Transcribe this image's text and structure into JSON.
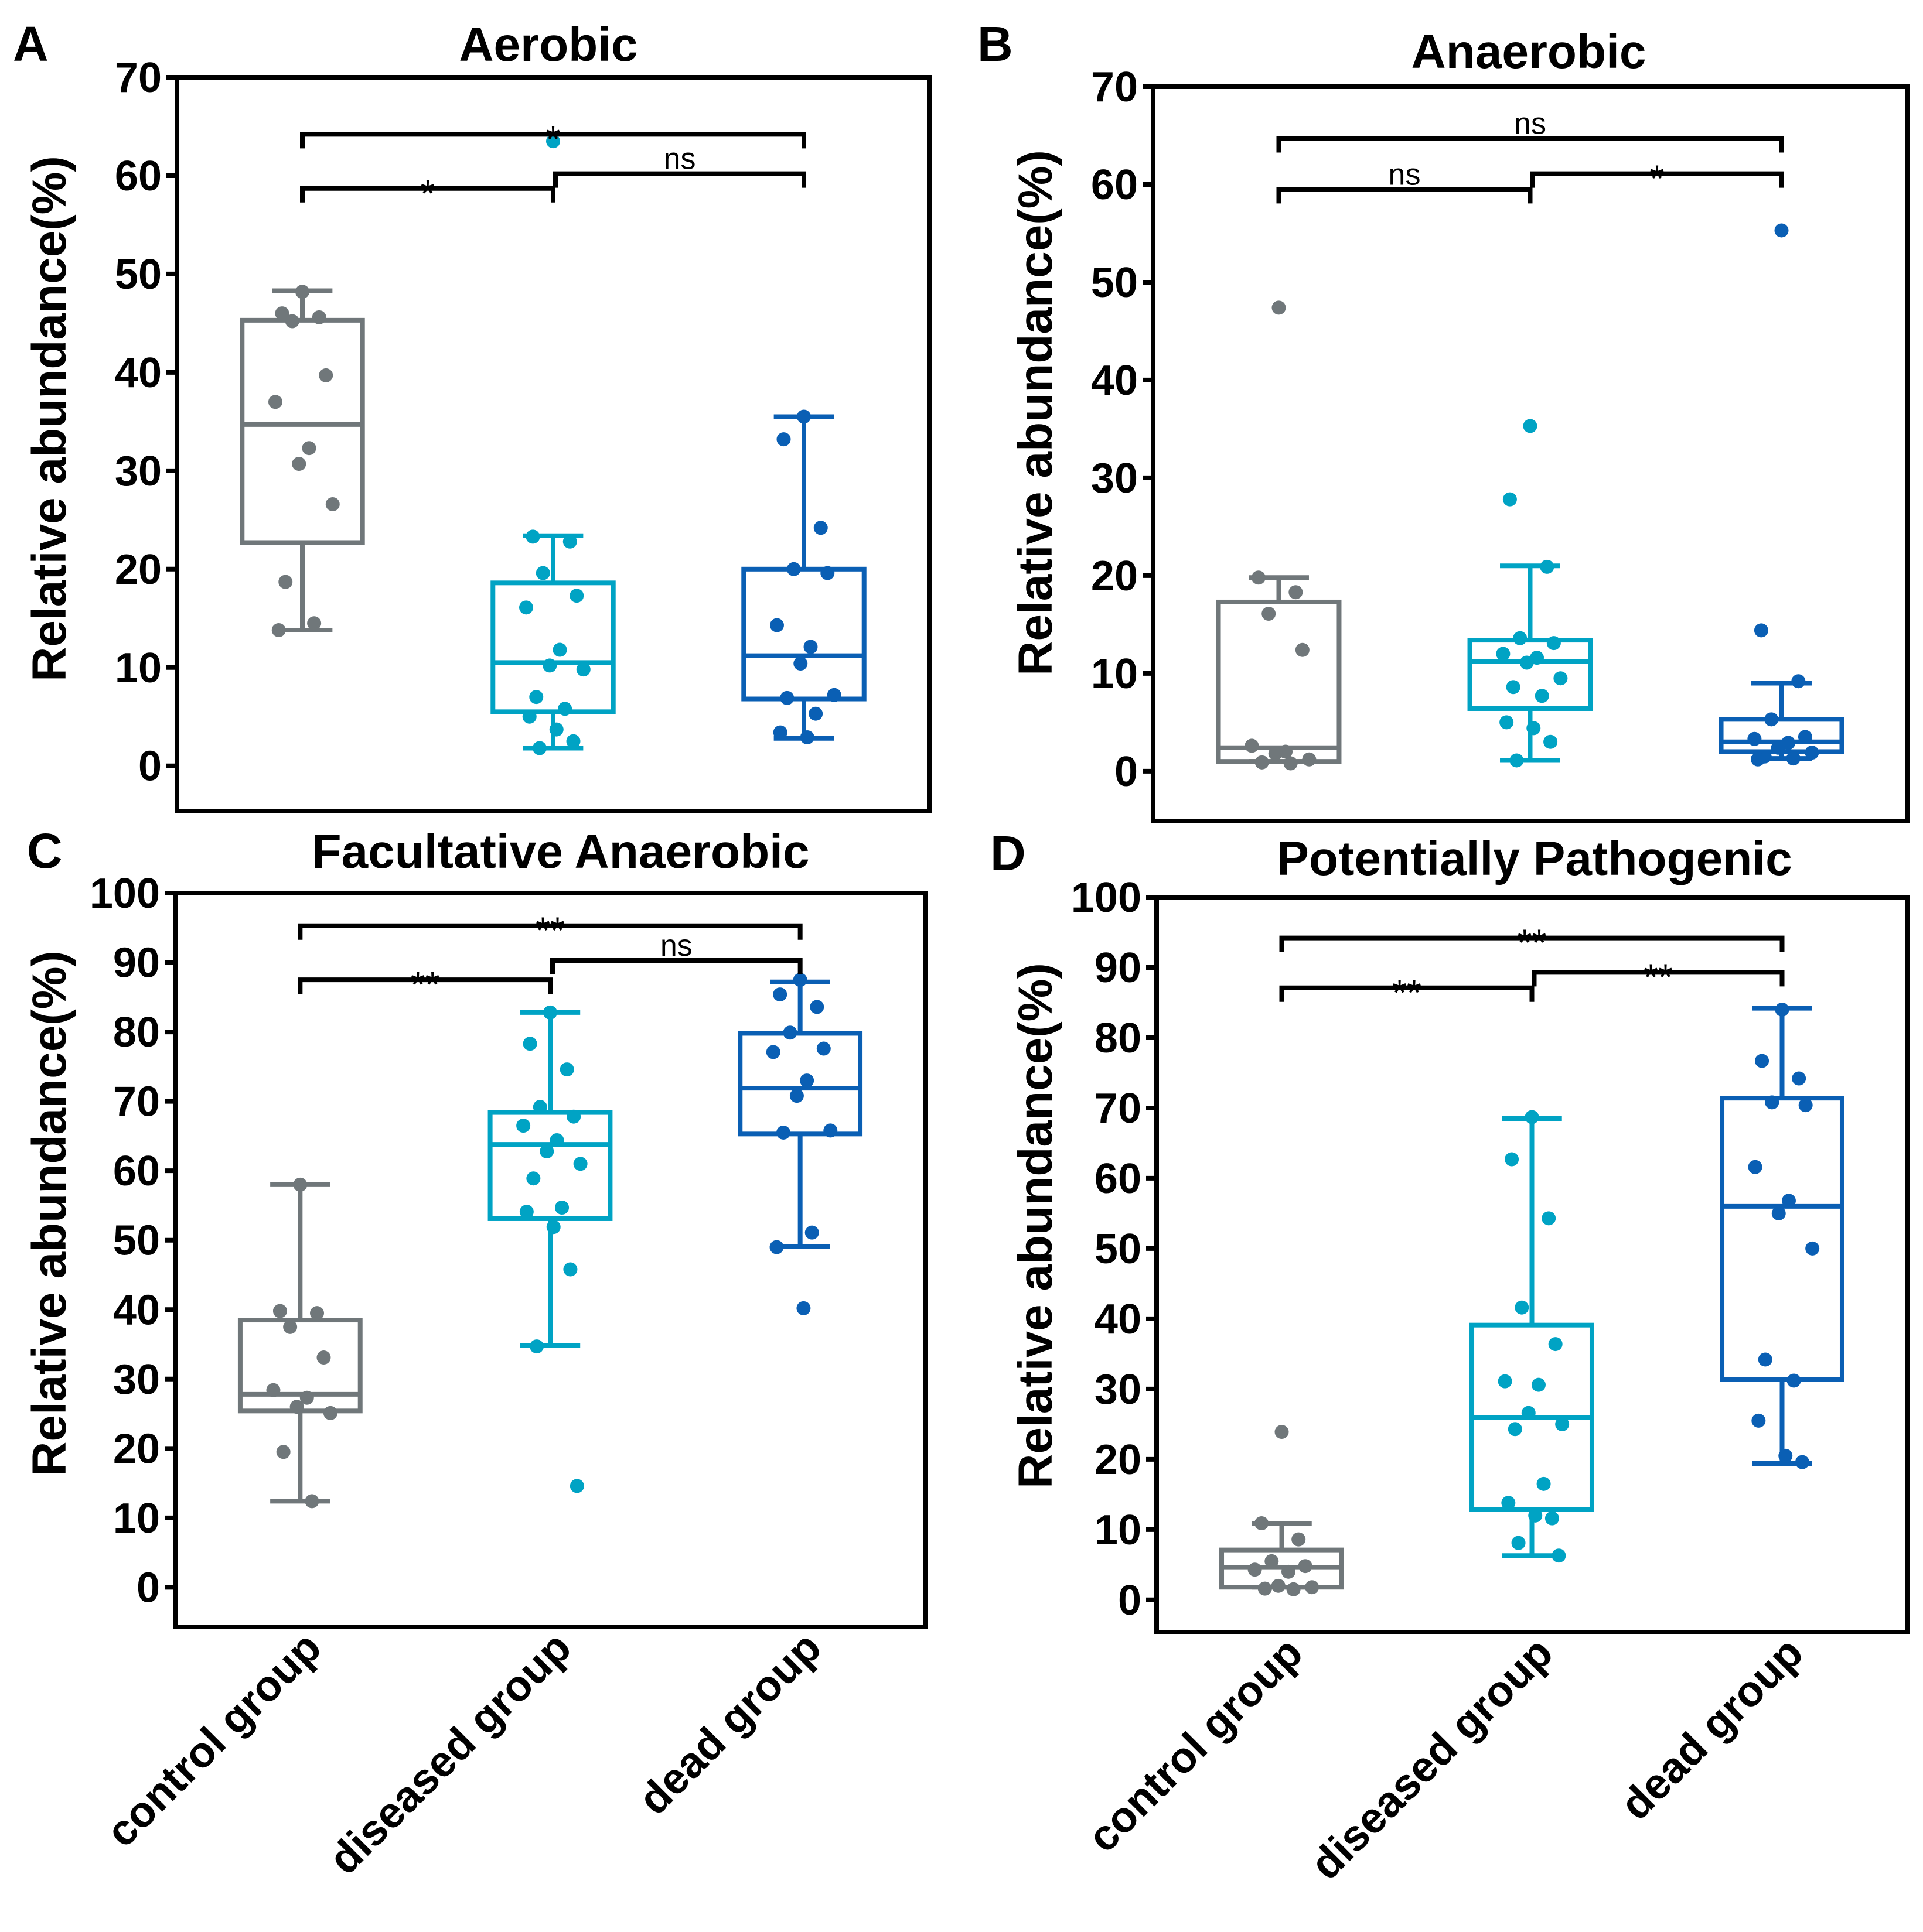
{
  "figure": {
    "groups": [
      "control group",
      "diseased group",
      "dead group"
    ],
    "group_colors": {
      "control group": "#70777a",
      "diseased group": "#00a3c4",
      "dead group": "#0a5fb4"
    },
    "ylabel": "Relative abundance(%)"
  },
  "chart_data": [
    {
      "panel": "A",
      "type": "box",
      "title": "Aerobic",
      "xlabel": "",
      "ylabel": "Relative abundance(%)",
      "ylim": [
        -4.6,
        70
      ],
      "yticks": [
        0,
        10,
        20,
        30,
        40,
        50,
        60,
        70
      ],
      "show_xtick_labels": false,
      "grid": false,
      "categories": [
        "control group",
        "diseased group",
        "dead group"
      ],
      "series": [
        {
          "name": "control group",
          "whisker_low": 13.8,
          "q1": 22.7,
          "median": 34.7,
          "q3": 45.3,
          "whisker_high": 48.3,
          "points": [
            48.2,
            46.0,
            45.6,
            45.2,
            39.7,
            37.0,
            32.3,
            30.7,
            26.6,
            18.7,
            14.5,
            13.8
          ]
        },
        {
          "name": "diseased group",
          "whisker_low": 1.8,
          "q1": 5.5,
          "median": 10.5,
          "q3": 18.6,
          "whisker_high": 23.4,
          "points": [
            63.5,
            23.3,
            22.8,
            19.6,
            17.3,
            16.1,
            11.8,
            10.2,
            9.8,
            7.0,
            5.8,
            5.0,
            3.7,
            2.5,
            1.8
          ]
        },
        {
          "name": "dead group",
          "whisker_low": 2.8,
          "q1": 6.8,
          "median": 11.2,
          "q3": 20.0,
          "whisker_high": 35.5,
          "points": [
            35.5,
            33.2,
            24.2,
            20.0,
            19.6,
            14.3,
            12.1,
            10.4,
            7.2,
            6.9,
            5.3,
            3.4,
            2.9
          ]
        }
      ],
      "significance": [
        {
          "from": "control group",
          "to": "diseased group",
          "y": 58.7,
          "label": "*"
        },
        {
          "from": "diseased group",
          "to": "dead group",
          "y": 60.2,
          "label": "ns"
        },
        {
          "from": "control group",
          "to": "dead group",
          "y": 64.2,
          "label": "*"
        }
      ]
    },
    {
      "panel": "B",
      "type": "box",
      "title": "Anaerobic",
      "xlabel": "",
      "ylabel": "Relative abundance(%)",
      "ylim": [
        -5.1,
        70
      ],
      "yticks": [
        0,
        10,
        20,
        30,
        40,
        50,
        60,
        70
      ],
      "show_xtick_labels": false,
      "grid": false,
      "categories": [
        "control group",
        "diseased group",
        "dead group"
      ],
      "series": [
        {
          "name": "control group",
          "whisker_low": 1.0,
          "q1": 1.0,
          "median": 2.4,
          "q3": 17.3,
          "whisker_high": 19.8,
          "points": [
            47.4,
            19.8,
            18.3,
            16.1,
            12.4,
            2.6,
            2.0,
            1.8,
            1.2,
            0.9,
            0.8
          ]
        },
        {
          "name": "diseased group",
          "whisker_low": 1.1,
          "q1": 6.4,
          "median": 11.2,
          "q3": 13.4,
          "whisker_high": 21.0,
          "points": [
            35.3,
            27.8,
            20.9,
            13.6,
            13.1,
            12.0,
            11.6,
            11.1,
            9.5,
            8.6,
            7.7,
            5.0,
            4.4,
            3.0,
            1.1
          ]
        },
        {
          "name": "dead group",
          "whisker_low": 1.3,
          "q1": 2.0,
          "median": 3.0,
          "q3": 5.3,
          "whisker_high": 9.0,
          "points": [
            55.3,
            14.4,
            9.2,
            5.3,
            3.5,
            3.3,
            2.9,
            2.4,
            1.9,
            1.5,
            1.3,
            1.2
          ]
        }
      ],
      "significance": [
        {
          "from": "control group",
          "to": "diseased group",
          "y": 59.5,
          "label": "ns"
        },
        {
          "from": "diseased group",
          "to": "dead group",
          "y": 61.1,
          "label": "*"
        },
        {
          "from": "control group",
          "to": "dead group",
          "y": 64.7,
          "label": "ns"
        }
      ]
    },
    {
      "panel": "C",
      "type": "box",
      "title": "Facultative Anaerobic",
      "xlabel": "",
      "ylabel": "Relative abundance(%)",
      "ylim": [
        -5.7,
        100
      ],
      "yticks": [
        0,
        10,
        20,
        30,
        40,
        50,
        60,
        70,
        80,
        90,
        100
      ],
      "show_xtick_labels": true,
      "grid": false,
      "categories": [
        "control group",
        "diseased group",
        "dead group"
      ],
      "series": [
        {
          "name": "control group",
          "whisker_low": 12.4,
          "q1": 25.4,
          "median": 27.8,
          "q3": 38.5,
          "whisker_high": 58.0,
          "points": [
            58.0,
            39.8,
            39.5,
            37.5,
            33.1,
            28.4,
            27.3,
            26.0,
            25.1,
            19.5,
            12.4
          ]
        },
        {
          "name": "diseased group",
          "whisker_low": 34.8,
          "q1": 53.1,
          "median": 63.8,
          "q3": 68.4,
          "whisker_high": 82.8,
          "points": [
            82.8,
            78.3,
            74.6,
            69.2,
            67.8,
            66.5,
            64.4,
            62.8,
            61.0,
            58.9,
            54.7,
            54.1,
            51.9,
            45.8,
            34.7,
            14.6
          ]
        },
        {
          "name": "dead group",
          "whisker_low": 49.1,
          "q1": 65.3,
          "median": 71.9,
          "q3": 79.8,
          "whisker_high": 87.2,
          "points": [
            87.5,
            85.4,
            83.6,
            79.9,
            77.6,
            77.1,
            73.0,
            70.8,
            65.8,
            65.5,
            51.1,
            49.0,
            40.2
          ]
        }
      ],
      "significance": [
        {
          "from": "control group",
          "to": "diseased group",
          "y": 87.5,
          "label": "**"
        },
        {
          "from": "diseased group",
          "to": "dead group",
          "y": 90.3,
          "label": "ns"
        },
        {
          "from": "control group",
          "to": "dead group",
          "y": 95.3,
          "label": "**"
        }
      ]
    },
    {
      "panel": "D",
      "type": "box",
      "title": "Potentially Pathogenic",
      "xlabel": "",
      "ylabel": "Relative abundance(%)",
      "ylim": [
        -4.6,
        100
      ],
      "yticks": [
        0,
        10,
        20,
        30,
        40,
        50,
        60,
        70,
        80,
        90,
        100
      ],
      "show_xtick_labels": true,
      "grid": false,
      "categories": [
        "control group",
        "diseased group",
        "dead group"
      ],
      "series": [
        {
          "name": "control group",
          "whisker_low": 1.8,
          "q1": 1.8,
          "median": 4.6,
          "q3": 7.1,
          "whisker_high": 10.9,
          "points": [
            23.9,
            10.9,
            8.6,
            5.5,
            4.8,
            4.3,
            4.0,
            2.0,
            1.8,
            1.6,
            1.5
          ]
        },
        {
          "name": "diseased group",
          "whisker_low": 6.3,
          "q1": 12.9,
          "median": 25.9,
          "q3": 39.1,
          "whisker_high": 68.5,
          "points": [
            68.7,
            62.7,
            54.3,
            41.6,
            36.4,
            31.1,
            30.6,
            26.6,
            25.0,
            24.3,
            16.5,
            13.8,
            12.0,
            11.6,
            8.1,
            6.3
          ]
        },
        {
          "name": "dead group",
          "whisker_low": 19.4,
          "q1": 31.4,
          "median": 56.0,
          "q3": 71.4,
          "whisker_high": 84.2,
          "points": [
            84.0,
            76.7,
            74.2,
            70.8,
            70.4,
            61.6,
            56.8,
            55.0,
            50.0,
            34.2,
            31.2,
            25.5,
            20.5,
            19.6
          ]
        }
      ],
      "significance": [
        {
          "from": "control group",
          "to": "diseased group",
          "y": 87.1,
          "label": "**"
        },
        {
          "from": "diseased group",
          "to": "dead group",
          "y": 89.3,
          "label": "**"
        },
        {
          "from": "control group",
          "to": "dead group",
          "y": 94.2,
          "label": "**"
        }
      ]
    }
  ]
}
